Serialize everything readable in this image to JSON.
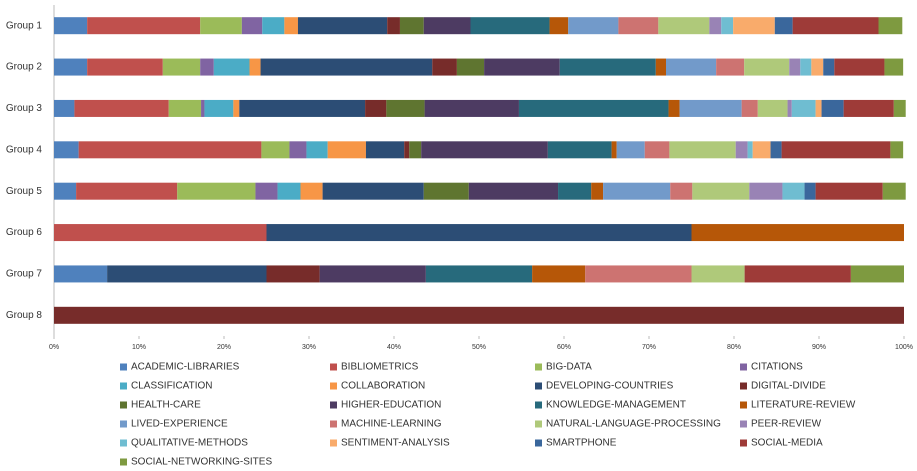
{
  "chart_data": {
    "type": "stacked-barh",
    "categories": [
      "Group 1",
      "Group 2",
      "Group 3",
      "Group 4",
      "Group 5",
      "Group 6",
      "Group 7",
      "Group 8"
    ],
    "xlim": [
      0,
      100
    ],
    "xticks": [
      {
        "value": 0,
        "label": "0%"
      },
      {
        "value": 10,
        "label": "10%"
      },
      {
        "value": 20,
        "label": "20%"
      },
      {
        "value": 30,
        "label": "30%"
      },
      {
        "value": 40,
        "label": "40%"
      },
      {
        "value": 50,
        "label": "50%"
      },
      {
        "value": 60,
        "label": "60%"
      },
      {
        "value": 70,
        "label": "70%"
      },
      {
        "value": 80,
        "label": "80%"
      },
      {
        "value": 90,
        "label": "90%"
      },
      {
        "value": 100,
        "label": "100%"
      }
    ],
    "series": [
      {
        "name": "ACADEMIC-LIBRARIES",
        "color": "#4f81bd",
        "values": [
          3.9,
          3.9,
          2.4,
          2.9,
          2.6,
          0,
          6.25,
          0
        ]
      },
      {
        "name": "BIBLIOMETRICS",
        "color": "#c0504d",
        "values": [
          13.3,
          8.9,
          11.1,
          21.5,
          11.9,
          25,
          0,
          0
        ]
      },
      {
        "name": "BIG-DATA",
        "color": "#9bbb59",
        "values": [
          4.9,
          4.4,
          3.8,
          3.3,
          9.2,
          0,
          0,
          0
        ]
      },
      {
        "name": "CITATIONS",
        "color": "#8064a2",
        "values": [
          2.4,
          1.6,
          0.4,
          2.0,
          2.6,
          0,
          0,
          0
        ]
      },
      {
        "name": "CLASSIFICATION",
        "color": "#4bacc6",
        "values": [
          2.6,
          4.2,
          3.4,
          2.5,
          2.7,
          0,
          0,
          0
        ]
      },
      {
        "name": "COLLABORATION",
        "color": "#f79646",
        "values": [
          1.6,
          1.3,
          0.7,
          4.5,
          2.6,
          0,
          0,
          0
        ]
      },
      {
        "name": "DEVELOPING-COUNTRIES",
        "color": "#2c4d75",
        "values": [
          10.5,
          20.2,
          14.8,
          4.5,
          11.9,
          50,
          18.75,
          0
        ]
      },
      {
        "name": "DIGITAL-DIVIDE",
        "color": "#772c2a",
        "values": [
          1.5,
          2.9,
          2.5,
          0.6,
          0,
          0,
          6.25,
          100
        ]
      },
      {
        "name": "HEALTH-CARE",
        "color": "#5f7530",
        "values": [
          2.8,
          3.2,
          4.5,
          1.4,
          5.3,
          0,
          0,
          0
        ]
      },
      {
        "name": "HIGHER-EDUCATION",
        "color": "#4d3b62",
        "values": [
          5.5,
          8.9,
          11.1,
          14.9,
          10.5,
          0,
          12.5,
          0
        ]
      },
      {
        "name": "KNOWLEDGE-MANAGEMENT",
        "color": "#276a7c",
        "values": [
          9.3,
          11.3,
          17.6,
          7.5,
          3.9,
          0,
          12.5,
          0
        ]
      },
      {
        "name": "LITERATURE-REVIEW",
        "color": "#b65708",
        "values": [
          2.2,
          1.2,
          1.3,
          0.6,
          1.4,
          25,
          6.25,
          0
        ]
      },
      {
        "name": "LIVED-EXPERIENCE",
        "color": "#729aca",
        "values": [
          5.9,
          5.9,
          7.3,
          3.3,
          7.9,
          0,
          0,
          0
        ]
      },
      {
        "name": "MACHINE-LEARNING",
        "color": "#cd7371",
        "values": [
          4.7,
          3.3,
          1.9,
          2.9,
          2.6,
          0,
          12.5,
          0
        ]
      },
      {
        "name": "NATURAL-LANGUAGE-PROCESSING",
        "color": "#afc97a",
        "values": [
          6.0,
          5.3,
          3.5,
          7.8,
          6.7,
          0,
          6.25,
          0
        ]
      },
      {
        "name": "PEER-REVIEW",
        "color": "#9983b5",
        "values": [
          1.4,
          1.3,
          0.5,
          1.4,
          3.9,
          0,
          0,
          0
        ]
      },
      {
        "name": "QUALITATIVE-METHODS",
        "color": "#6fbdd1",
        "values": [
          1.4,
          1.3,
          2.8,
          0.6,
          2.6,
          0,
          0,
          0
        ]
      },
      {
        "name": "SENTIMENT-ANALYSIS",
        "color": "#f9ab6b",
        "values": [
          4.9,
          1.4,
          0.7,
          2.1,
          0,
          0,
          0,
          0
        ]
      },
      {
        "name": "SMARTPHONE",
        "color": "#3a679c",
        "values": [
          2.1,
          1.3,
          2.6,
          1.3,
          1.3,
          0,
          0,
          0
        ]
      },
      {
        "name": "SOCIAL-MEDIA",
        "color": "#9e3b38",
        "values": [
          10.1,
          5.9,
          5.9,
          12.8,
          7.9,
          0,
          12.5,
          0
        ]
      },
      {
        "name": "SOCIAL-NETWORKING-SITES",
        "color": "#7e9a40",
        "values": [
          2.8,
          2.2,
          1.4,
          1.5,
          2.7,
          0,
          6.25,
          0
        ]
      }
    ]
  }
}
